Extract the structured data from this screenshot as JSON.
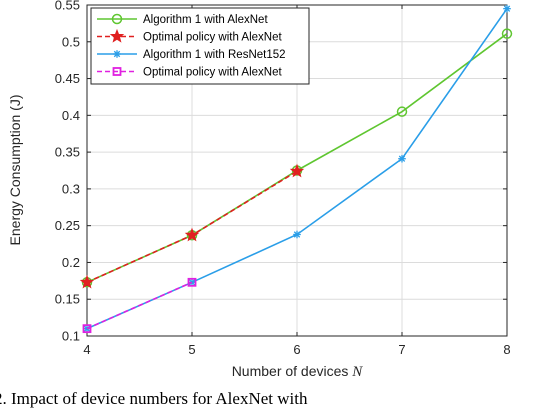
{
  "chart_data": {
    "type": "line",
    "xlabel": "Number of devices",
    "xlabel_symbol": "N",
    "ylabel": "Energy Consumption (J)",
    "xlim": [
      4,
      8
    ],
    "ylim": [
      0.1,
      0.55
    ],
    "xticks": [
      "4",
      "5",
      "6",
      "7",
      "8"
    ],
    "yticks": [
      "0.1",
      "0.15",
      "0.2",
      "0.25",
      "0.3",
      "0.35",
      "0.4",
      "0.45",
      "0.5",
      "0.55"
    ],
    "grid": true,
    "legend_position": "top-left",
    "series": [
      {
        "name": "Algorithm 1 with AlexNet",
        "color": "#5fc630",
        "marker": "circle",
        "line_style": "solid",
        "x": [
          4,
          5,
          6,
          7,
          8
        ],
        "y": [
          0.173,
          0.237,
          0.325,
          0.405,
          0.511
        ]
      },
      {
        "name": "Optimal policy with AlexNet",
        "color": "#e02020",
        "marker": "star",
        "line_style": "dashed",
        "x": [
          4,
          5,
          6
        ],
        "y": [
          0.173,
          0.237,
          0.324
        ]
      },
      {
        "name": "Algorithm 1 with ResNet152",
        "color": "#2a9ee8",
        "marker": "asterisk",
        "line_style": "solid",
        "x": [
          4,
          5,
          6,
          7,
          8
        ],
        "y": [
          0.11,
          0.173,
          0.238,
          0.341,
          0.545
        ]
      },
      {
        "name": "Optimal policy with AlexNet",
        "color": "#e020e0",
        "marker": "square",
        "line_style": "dashed",
        "x": [
          4,
          5
        ],
        "y": [
          0.11,
          0.173
        ]
      }
    ]
  },
  "caption": "2. Impact of device numbers for AlexNet with"
}
